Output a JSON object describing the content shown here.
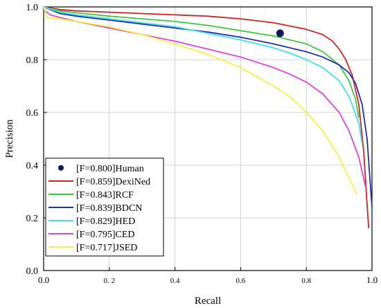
{
  "chart_data": {
    "type": "line",
    "title": "",
    "xlabel": "Recall",
    "ylabel": "Precision",
    "xlim": [
      0,
      1
    ],
    "ylim": [
      0,
      1
    ],
    "grid": true,
    "legend_position": "bottom-left",
    "x_ticks": [
      {
        "value": 0.0,
        "label": "0.0"
      },
      {
        "value": 0.2,
        "label": "0. 2"
      },
      {
        "value": 0.4,
        "label": "0.4"
      },
      {
        "value": 0.6,
        "label": "0.6"
      },
      {
        "value": 0.8,
        "label": "0.8"
      },
      {
        "value": 1.0,
        "label": "1.0"
      }
    ],
    "y_ticks": [
      {
        "value": 0.0,
        "label": "0.0"
      },
      {
        "value": 0.2,
        "label": "0.2"
      },
      {
        "value": 0.4,
        "label": "0.4"
      },
      {
        "value": 0.6,
        "label": "0.6"
      },
      {
        "value": 0.8,
        "label": "0.8"
      },
      {
        "value": 1.0,
        "label": "1.0"
      }
    ],
    "human": {
      "name": "[F=0.800]Human",
      "x": 0.72,
      "y": 0.9,
      "color": "#0a1a5c"
    },
    "series": [
      {
        "name": "[F=0.859]DexiNed",
        "color": "#d42020",
        "x": [
          0,
          0.05,
          0.1,
          0.2,
          0.3,
          0.4,
          0.5,
          0.6,
          0.7,
          0.8,
          0.85,
          0.88,
          0.9,
          0.92,
          0.94,
          0.96,
          0.975,
          0.985,
          0.99
        ],
        "y": [
          1.0,
          0.99,
          0.985,
          0.98,
          0.975,
          0.97,
          0.965,
          0.955,
          0.94,
          0.915,
          0.895,
          0.87,
          0.84,
          0.8,
          0.74,
          0.63,
          0.45,
          0.25,
          0.16
        ]
      },
      {
        "name": "[F=0.843]RCF",
        "color": "#3ec83e",
        "x": [
          0,
          0.05,
          0.1,
          0.2,
          0.3,
          0.4,
          0.5,
          0.6,
          0.7,
          0.75,
          0.8,
          0.85,
          0.9,
          0.93,
          0.95,
          0.96
        ],
        "y": [
          1.0,
          0.985,
          0.978,
          0.965,
          0.955,
          0.945,
          0.93,
          0.91,
          0.89,
          0.875,
          0.86,
          0.83,
          0.78,
          0.72,
          0.65,
          0.58
        ]
      },
      {
        "name": "[F=0.839]BDCN",
        "color": "#1f2fb0",
        "x": [
          0,
          0.05,
          0.1,
          0.2,
          0.3,
          0.4,
          0.5,
          0.6,
          0.7,
          0.8,
          0.85,
          0.9,
          0.93,
          0.95,
          0.97,
          0.985,
          1.0
        ],
        "y": [
          1.0,
          0.975,
          0.965,
          0.95,
          0.935,
          0.92,
          0.905,
          0.885,
          0.86,
          0.83,
          0.81,
          0.78,
          0.75,
          0.71,
          0.63,
          0.5,
          0.24
        ]
      },
      {
        "name": "[F=0.829]HED",
        "color": "#3ee0e8",
        "x": [
          0,
          0.05,
          0.1,
          0.2,
          0.3,
          0.4,
          0.5,
          0.6,
          0.7,
          0.75,
          0.8,
          0.85,
          0.9,
          0.93,
          0.96,
          0.97
        ],
        "y": [
          1.0,
          0.98,
          0.97,
          0.955,
          0.94,
          0.925,
          0.9,
          0.875,
          0.845,
          0.825,
          0.8,
          0.77,
          0.72,
          0.66,
          0.56,
          0.48
        ]
      },
      {
        "name": "[F=0.795]CED",
        "color": "#e040e0",
        "x": [
          0,
          0.02,
          0.05,
          0.1,
          0.2,
          0.3,
          0.4,
          0.5,
          0.6,
          0.7,
          0.75,
          0.8,
          0.85,
          0.9,
          0.93,
          0.96,
          0.98
        ],
        "y": [
          0.99,
          0.97,
          0.96,
          0.945,
          0.92,
          0.895,
          0.87,
          0.84,
          0.81,
          0.77,
          0.745,
          0.715,
          0.67,
          0.6,
          0.53,
          0.43,
          0.32
        ]
      },
      {
        "name": "[F=0.717]JSED",
        "color": "#f2f240",
        "x": [
          0,
          0.01,
          0.05,
          0.1,
          0.15,
          0.2,
          0.3,
          0.4,
          0.5,
          0.6,
          0.7,
          0.75,
          0.8,
          0.85,
          0.9,
          0.93,
          0.955
        ],
        "y": [
          1.0,
          0.96,
          0.955,
          0.945,
          0.935,
          0.925,
          0.895,
          0.86,
          0.82,
          0.77,
          0.7,
          0.66,
          0.6,
          0.53,
          0.43,
          0.35,
          0.29
        ]
      }
    ]
  }
}
